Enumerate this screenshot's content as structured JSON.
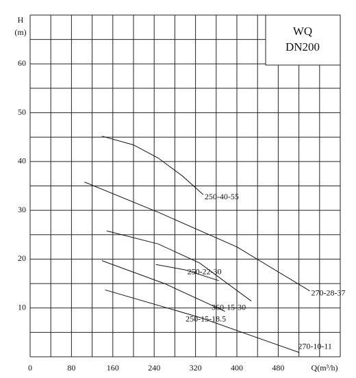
{
  "chart_data": {
    "type": "line",
    "title": "WQ",
    "subtitle": "DN200",
    "y_label": "H",
    "y_unit": "(m)",
    "x_label": "Q(m³/h)",
    "xlim": [
      0,
      600
    ],
    "ylim": [
      0,
      70
    ],
    "xticks": [
      0,
      80,
      160,
      240,
      320,
      400,
      480
    ],
    "yticks": [
      10,
      20,
      30,
      40,
      50,
      60
    ],
    "xgrid": [
      0,
      40,
      80,
      120,
      160,
      200,
      240,
      280,
      320,
      360,
      400,
      440,
      480,
      520,
      560,
      600
    ],
    "ygrid": [
      0,
      5,
      10,
      15,
      20,
      25,
      30,
      35,
      40,
      45,
      50,
      55,
      60,
      65,
      70
    ],
    "series": [
      {
        "name": "250-40-55",
        "color": "#111111",
        "x": [
          139,
          200,
          248,
          295,
          335
        ],
        "values": [
          45.2,
          43.4,
          40.7,
          37,
          33.2
        ]
      },
      {
        "name": "270-28-37",
        "color": "#111111",
        "x": [
          105,
          250,
          400,
          541
        ],
        "values": [
          35.8,
          29.5,
          22.5,
          13.5
        ]
      },
      {
        "name": "250-22-30",
        "color": "#111111",
        "x": [
          243,
          300,
          365
        ],
        "values": [
          18.9,
          17.8,
          15.6
        ]
      },
      {
        "name": "360-15-30",
        "color": "#111111",
        "x": [
          148,
          248,
          328,
          428
        ],
        "values": [
          25.8,
          23.1,
          19.2,
          11.4
        ]
      },
      {
        "name": "250-15-18.5",
        "color": "#111111",
        "x": [
          139,
          260,
          377
        ],
        "values": [
          19.7,
          15,
          9.3
        ]
      },
      {
        "name": "270-10-11",
        "color": "#111111",
        "x": [
          145,
          330,
          521
        ],
        "values": [
          13.7,
          8,
          0.85
        ]
      }
    ]
  }
}
